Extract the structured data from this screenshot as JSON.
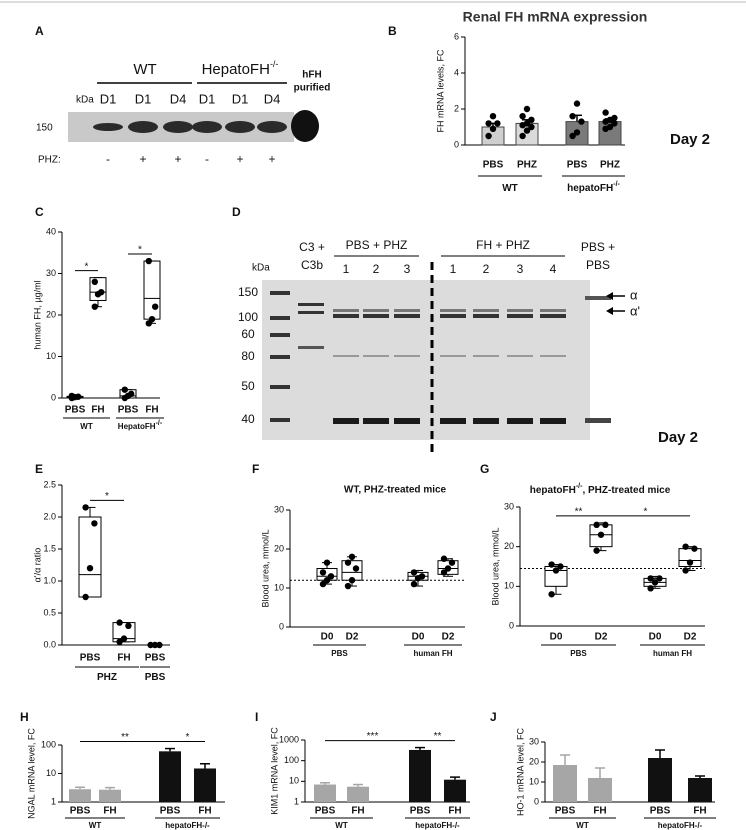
{
  "blot_a": {
    "label": "A",
    "kda": "kDa",
    "marker": "150",
    "groups": [
      {
        "name": "WT"
      },
      {
        "name": "HepatoFH",
        "sup": "-/-"
      }
    ],
    "lanes": [
      "D1",
      "D1",
      "D4",
      "D1",
      "D1",
      "D4"
    ],
    "purified": [
      "hFH",
      "purified"
    ],
    "treatment": "PHZ:",
    "signs": [
      "-",
      "+",
      "+",
      "-",
      "+",
      "+"
    ]
  },
  "blot_d": {
    "label": "D",
    "kda": "kDa",
    "markers": [
      "150",
      "100",
      "60",
      "80",
      "50",
      "40"
    ],
    "control": [
      "C3 +",
      "C3b"
    ],
    "groups": [
      {
        "name": "PBS + PHZ",
        "lanes": [
          "1",
          "2",
          "3"
        ]
      },
      {
        "name": "FH + PHZ",
        "lanes": [
          "1",
          "2",
          "3",
          "4"
        ]
      }
    ],
    "last": [
      "PBS +",
      "PBS"
    ],
    "chains": [
      "α",
      "α'"
    ],
    "note": "Day 2"
  },
  "chart_data": [
    {
      "type": "bar",
      "panel": "B",
      "title": "Renal FH mRNA expression",
      "ylabel": "FH mRNA levels, FC",
      "ylim": [
        0,
        6
      ],
      "yticks": [
        0,
        2,
        4,
        6
      ],
      "annotation": "Day 2",
      "groups": [
        {
          "name": "WT",
          "categories": [
            "PBS",
            "PHZ"
          ],
          "values": [
            1.0,
            1.2
          ],
          "errors": [
            0.2,
            0.2
          ],
          "colors": [
            "#cfcfcf",
            "#dadada"
          ],
          "points": [
            [
              0.5,
              0.9,
              1.2,
              1.2,
              1.6
            ],
            [
              0.5,
              0.8,
              1.0,
              1.1,
              1.2,
              1.4,
              1.6,
              2.0
            ]
          ]
        },
        {
          "name": "hepatoFH",
          "sup": "-/-",
          "categories": [
            "PBS",
            "PHZ"
          ],
          "values": [
            1.3,
            1.3
          ],
          "errors": [
            0.35,
            0.15
          ],
          "colors": [
            "#7a7a7a",
            "#7a7a7a"
          ],
          "points": [
            [
              0.5,
              0.7,
              1.3,
              1.6,
              2.3
            ],
            [
              0.9,
              1.0,
              1.2,
              1.3,
              1.4,
              1.5,
              1.8
            ]
          ]
        }
      ]
    },
    {
      "type": "box",
      "panel": "C",
      "ylabel": "human FH, µg/ml",
      "ylim": [
        0,
        40
      ],
      "yticks": [
        0,
        10,
        20,
        30,
        40
      ],
      "groups": [
        {
          "name": "WT",
          "categories": [
            "PBS",
            "FH"
          ],
          "boxes": [
            [
              0,
              0,
              0.2,
              0.4,
              0.5
            ],
            [
              22,
              23.5,
              25.5,
              29,
              29
            ]
          ],
          "points": [
            [
              0,
              0.2,
              0.3,
              0.5
            ],
            [
              22,
              25,
              25.5,
              28
            ]
          ]
        },
        {
          "name": "HepatoFH",
          "sup": "-/-",
          "categories": [
            "PBS",
            "FH"
          ],
          "boxes": [
            [
              0,
              0,
              0.5,
              2,
              2
            ],
            [
              18,
              19,
              24,
              33,
              33
            ]
          ],
          "points": [
            [
              0,
              0.5,
              1,
              2
            ],
            [
              18,
              19,
              22,
              33
            ]
          ]
        }
      ],
      "significance": [
        {
          "label": "*",
          "pair": [
            0,
            1
          ]
        },
        {
          "label": "*",
          "pair": [
            2,
            3
          ]
        }
      ]
    },
    {
      "type": "box",
      "panel": "E",
      "ylabel": "α'/α ratio",
      "ylim": [
        0,
        2.5
      ],
      "yticks": [
        {
          "value": 0,
          "label": "0.0"
        },
        0.5,
        {
          "value": 1,
          "label": "1.0"
        },
        1.5,
        {
          "value": 2,
          "label": "2.0"
        },
        2.5
      ],
      "groups": [
        {
          "name": "PHZ",
          "categories": [
            "PBS",
            "FH"
          ],
          "boxes": [
            [
              0.75,
              0.75,
              1.1,
              2.0,
              2.15
            ],
            [
              0.05,
              0.05,
              0.1,
              0.35,
              0.35
            ]
          ],
          "points": [
            [
              0.75,
              1.2,
              1.9,
              2.15
            ],
            [
              0.05,
              0.1,
              0.3,
              0.35
            ]
          ]
        },
        {
          "name": "PBS",
          "categories": [
            "PBS"
          ],
          "boxes": [
            [
              0,
              0,
              0,
              0,
              0
            ]
          ],
          "points": [
            [
              0,
              0,
              0
            ]
          ]
        }
      ],
      "significance": [
        {
          "label": "*",
          "pair": [
            0,
            1
          ]
        }
      ]
    },
    {
      "type": "box",
      "panel": "F",
      "title": "WT, PHZ-treated mice",
      "ylabel": "Blood urea, mmol/L",
      "ylim": [
        0,
        30
      ],
      "yticks": [
        0,
        10,
        20,
        30
      ],
      "reference_line": 12,
      "groups": [
        {
          "name": "PBS",
          "categories": [
            "D0",
            "D2"
          ],
          "boxes": [
            [
              11,
              12,
              13,
              15,
              16.5
            ],
            [
              10.5,
              12,
              14,
              17,
              18
            ]
          ],
          "points": [
            [
              11,
              12,
              13,
              14,
              16.5
            ],
            [
              10.5,
              12,
              15,
              16.5,
              18
            ]
          ]
        },
        {
          "name": "human FH",
          "categories": [
            "D0",
            "D2"
          ],
          "boxes": [
            [
              10.5,
              12,
              13,
              14,
              14.5
            ],
            [
              13,
              13.5,
              15,
              17,
              17.5
            ]
          ],
          "points": [
            [
              11,
              12.5,
              13,
              14
            ],
            [
              14,
              15,
              16.5,
              17.5
            ]
          ]
        }
      ]
    },
    {
      "type": "box",
      "panel": "G",
      "title": [
        "hepatoFH",
        "-/-",
        ", PHZ-treated mice"
      ],
      "ylabel": "Blood urea, mmol/L",
      "ylim": [
        0,
        30
      ],
      "yticks": [
        0,
        10,
        20,
        30
      ],
      "reference_line": 14.5,
      "groups": [
        {
          "name": "PBS",
          "categories": [
            "D0",
            "D2"
          ],
          "boxes": [
            [
              8,
              10,
              14,
              15,
              15.5
            ],
            [
              19,
              20,
              23,
              25.5,
              26
            ]
          ],
          "points": [
            [
              8,
              14,
              15,
              15.5
            ],
            [
              19,
              23,
              25.5,
              25.5
            ]
          ]
        },
        {
          "name": "human FH",
          "categories": [
            "D0",
            "D2"
          ],
          "boxes": [
            [
              9.5,
              10,
              11,
              12,
              12.5
            ],
            [
              14,
              15,
              16.5,
              19.5,
              20
            ]
          ],
          "points": [
            [
              9.5,
              11,
              12,
              12
            ],
            [
              14,
              16,
              19.5,
              20
            ]
          ]
        }
      ],
      "significance": [
        {
          "label": "**",
          "pair": [
            0,
            1
          ]
        },
        {
          "label": "*",
          "pair": [
            1,
            3
          ]
        }
      ]
    },
    {
      "type": "bar",
      "panel": "H",
      "ylabel": "NGAL mRNA level, FC",
      "log": true,
      "ylim": [
        1,
        100
      ],
      "yticks": [
        1,
        10,
        100
      ],
      "groups": [
        {
          "name": "WT",
          "categories": [
            "PBS",
            "FH"
          ],
          "values": [
            2.8,
            2.7
          ],
          "errors": [
            0.5,
            0.5
          ],
          "colors": [
            "#a6a6a6",
            "#a6a6a6"
          ]
        },
        {
          "name": "hepatoFH-/-",
          "categories": [
            "PBS",
            "FH"
          ],
          "values": [
            60,
            15
          ],
          "errors": [
            15,
            7
          ],
          "colors": [
            "#111111",
            "#111111"
          ]
        }
      ],
      "significance": [
        {
          "label": "**",
          "pair": [
            0,
            2
          ]
        },
        {
          "label": "*",
          "pair": [
            2,
            3
          ]
        }
      ]
    },
    {
      "type": "bar",
      "panel": "I",
      "ylabel": "KIM1 mRNA level, FC",
      "log": true,
      "ylim": [
        1,
        1000
      ],
      "yticks": [
        1,
        10,
        100,
        1000
      ],
      "groups": [
        {
          "name": "WT",
          "categories": [
            "PBS",
            "FH"
          ],
          "values": [
            7,
            5.5
          ],
          "errors": [
            1.5,
            1.5
          ],
          "colors": [
            "#a6a6a6",
            "#a6a6a6"
          ]
        },
        {
          "name": "hepatoFH-/-",
          "categories": [
            "PBS",
            "FH"
          ],
          "values": [
            330,
            12
          ],
          "errors": [
            100,
            4
          ],
          "colors": [
            "#111111",
            "#111111"
          ]
        }
      ],
      "significance": [
        {
          "label": "***",
          "pair": [
            0,
            2
          ]
        },
        {
          "label": "**",
          "pair": [
            2,
            3
          ]
        }
      ]
    },
    {
      "type": "bar",
      "panel": "J",
      "ylabel": "HO-1 mRNA level, FC",
      "ylim": [
        0,
        30
      ],
      "yticks": [
        0,
        10,
        20,
        30
      ],
      "groups": [
        {
          "name": "WT",
          "categories": [
            "PBS",
            "FH"
          ],
          "values": [
            18.5,
            12
          ],
          "errors": [
            5,
            5
          ],
          "colors": [
            "#a6a6a6",
            "#a6a6a6"
          ]
        },
        {
          "name": "hepatoFH-/-",
          "categories": [
            "PBS",
            "FH"
          ],
          "values": [
            22,
            12
          ],
          "errors": [
            4,
            1
          ],
          "colors": [
            "#111111",
            "#111111"
          ]
        }
      ]
    }
  ]
}
